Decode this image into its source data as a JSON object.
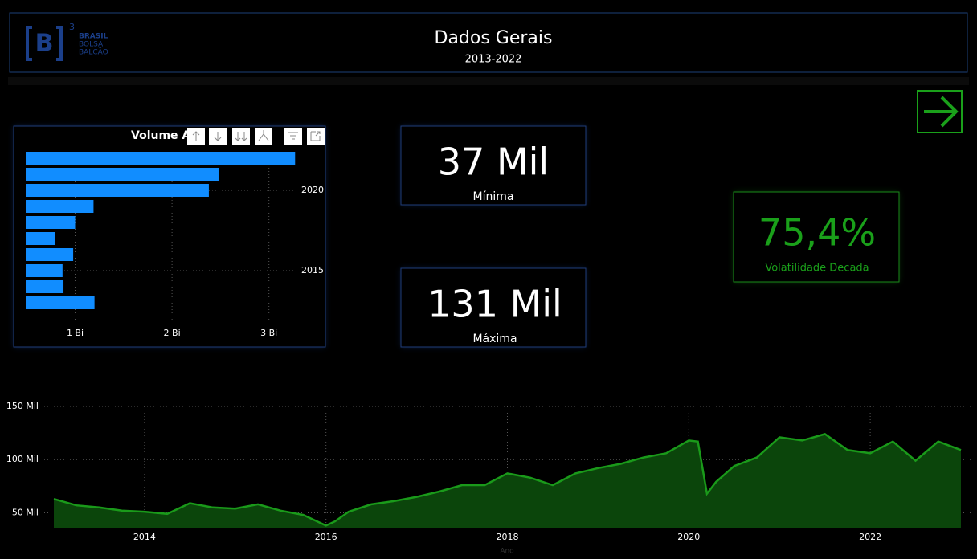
{
  "header": {
    "title": "Dados Gerais",
    "subtitle": "2013-2022",
    "logo": {
      "mark": "B",
      "sup": "3",
      "lines": [
        "BRASIL",
        "BOLSA",
        "BALCÃO"
      ]
    }
  },
  "cards": [
    {
      "value": "37 Mil",
      "label": "Mínima"
    },
    {
      "value": "131 Mil",
      "label": "Máxima"
    },
    {
      "value": "75,4%",
      "label": "Volatilidade Decada"
    }
  ],
  "chart_data": [
    {
      "type": "hbar",
      "title": "Volume A",
      "categories": [
        null,
        null,
        "2020",
        null,
        null,
        null,
        null,
        "2015",
        null,
        null
      ],
      "values": [
        3.27,
        2.48,
        2.38,
        1.19,
        1.0,
        0.79,
        0.98,
        0.87,
        0.88,
        1.2
      ],
      "color": "#118dff",
      "xlim": [
        0.49,
        3.5
      ],
      "xticks": [
        {
          "value": 1,
          "label": "1 Bi"
        },
        {
          "value": 2,
          "label": "2 Bi"
        },
        {
          "value": 3,
          "label": "3 Bi"
        }
      ],
      "grid": true
    },
    {
      "type": "area",
      "xlabel": "Ano",
      "color": "#1a9a1a",
      "fill": "#0b450b",
      "x": [
        2013,
        2013.25,
        2013.5,
        2013.75,
        2014,
        2014.25,
        2014.5,
        2014.75,
        2015,
        2015.25,
        2015.5,
        2015.75,
        2016,
        2016.1,
        2016.25,
        2016.5,
        2016.75,
        2017,
        2017.25,
        2017.5,
        2017.75,
        2018,
        2018.25,
        2018.5,
        2018.75,
        2019,
        2019.25,
        2019.5,
        2019.75,
        2020,
        2020.1,
        2020.2,
        2020.3,
        2020.5,
        2020.75,
        2021,
        2021.25,
        2021.5,
        2021.75,
        2022,
        2022.25,
        2022.5,
        2022.75,
        2023
      ],
      "values": [
        63,
        57,
        55,
        52,
        51,
        49,
        59,
        55,
        54,
        58,
        52,
        48,
        38,
        42,
        51,
        58,
        61,
        65,
        70,
        76,
        76,
        87,
        83,
        76,
        87,
        92,
        96,
        102,
        106,
        118,
        117,
        68,
        79,
        94,
        102,
        121,
        118,
        124,
        109,
        106,
        117,
        99,
        117,
        109
      ],
      "xlim": [
        2013,
        2023
      ],
      "xticks": [
        2014,
        2016,
        2018,
        2020,
        2022
      ],
      "ylim": [
        36,
        150
      ],
      "yticks": [
        {
          "value": 50,
          "label": "50 Mil"
        },
        {
          "value": 100,
          "label": "100 Mil"
        },
        {
          "value": 150,
          "label": "150 Mil"
        }
      ],
      "grid": true
    }
  ]
}
